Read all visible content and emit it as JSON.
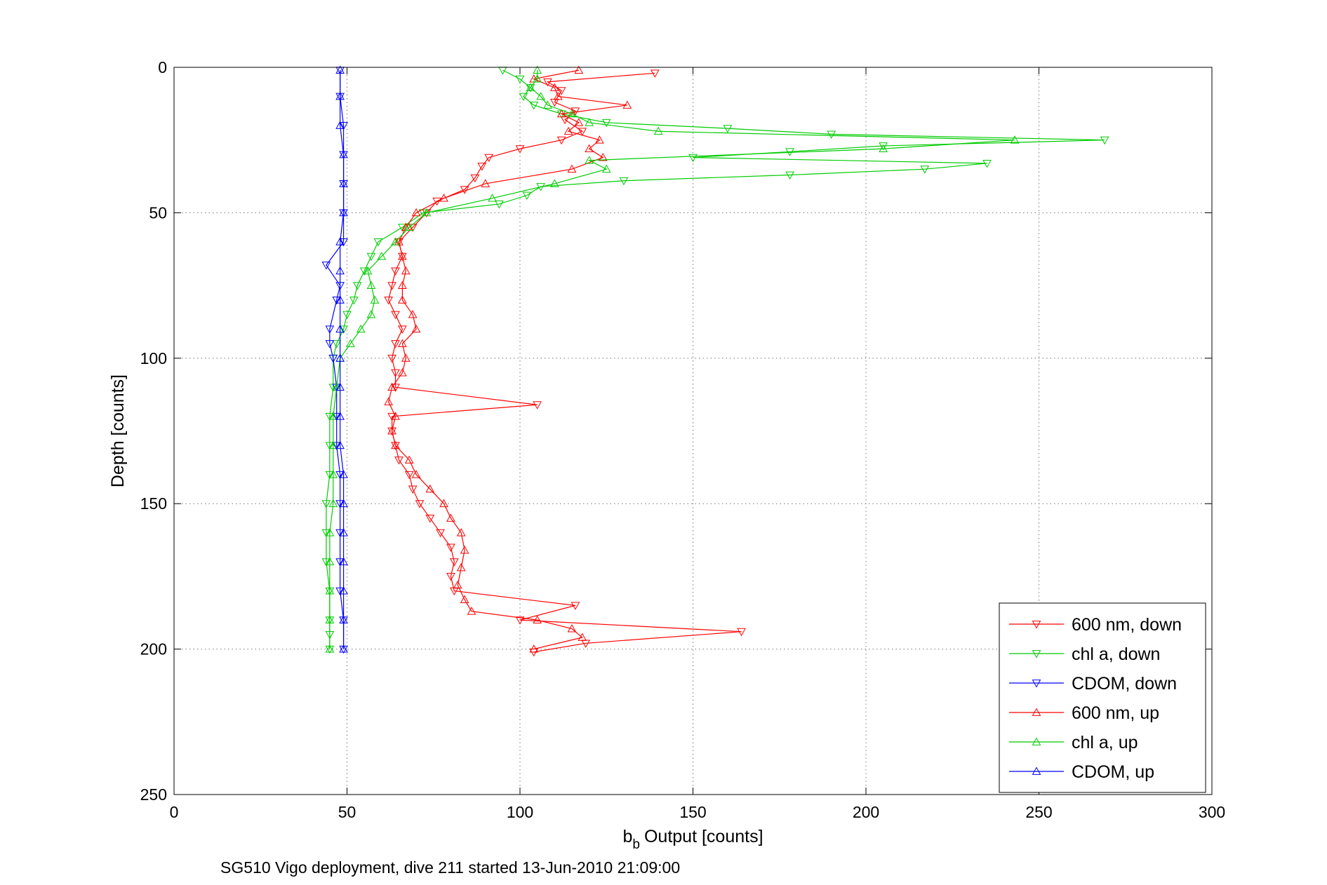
{
  "chart_data": {
    "type": "line",
    "title": "",
    "xlabel": "Output [counts]",
    "xlabel_symbol": "b",
    "xlabel_subscript": "b",
    "ylabel": "Depth [counts]",
    "xlim": [
      0,
      300
    ],
    "ylim": [
      0,
      250
    ],
    "y_reversed": true,
    "grid": true,
    "legend_position": "bottom-right",
    "xticks": [
      0,
      50,
      100,
      150,
      200,
      250,
      300
    ],
    "yticks": [
      0,
      50,
      100,
      150,
      200,
      250
    ],
    "caption": "SG510 Vigo deployment, dive 211 started 13-Jun-2010 21:09:00",
    "series": [
      {
        "name": "600 nm, down",
        "color": "#ff0000",
        "marker": "triangle-down",
        "depth": [
          2,
          5,
          8,
          12,
          15,
          18,
          22,
          25,
          28,
          31,
          34,
          38,
          42,
          46,
          50,
          55,
          60,
          65,
          70,
          75,
          80,
          85,
          90,
          95,
          100,
          105,
          110,
          116,
          120,
          125,
          130,
          135,
          140,
          145,
          150,
          155,
          160,
          165,
          170,
          175,
          180,
          185,
          190,
          194,
          198,
          201
        ],
        "values": [
          139,
          108,
          112,
          110,
          116,
          113,
          118,
          112,
          100,
          91,
          89,
          87,
          84,
          76,
          73,
          69,
          65,
          66,
          64,
          63,
          62,
          64,
          66,
          64,
          63,
          64,
          64,
          105,
          63,
          63,
          64,
          65,
          68,
          69,
          71,
          74,
          77,
          80,
          81,
          80,
          81,
          116,
          100,
          164,
          119,
          104
        ]
      },
      {
        "name": "chl a, down",
        "color": "#00cc00",
        "marker": "triangle-down",
        "depth": [
          1,
          4,
          7,
          10,
          13,
          16,
          19,
          21,
          23,
          25,
          27,
          29,
          31,
          33,
          35,
          37,
          39,
          41,
          44,
          47,
          50,
          55,
          60,
          65,
          70,
          75,
          80,
          85,
          90,
          95,
          100,
          110,
          120,
          130,
          140,
          150,
          160,
          170,
          180,
          190,
          195,
          200
        ],
        "values": [
          95,
          100,
          103,
          101,
          104,
          112,
          125,
          160,
          190,
          269,
          205,
          178,
          150,
          235,
          217,
          178,
          130,
          106,
          102,
          94,
          72,
          66,
          59,
          57,
          55,
          53,
          52,
          50,
          49,
          47,
          46,
          46,
          45,
          45,
          45,
          44,
          44,
          44,
          45,
          45,
          45,
          45
        ]
      },
      {
        "name": "CDOM, down",
        "color": "#0000ff",
        "marker": "triangle-down",
        "depth": [
          1,
          10,
          20,
          30,
          40,
          50,
          60,
          68,
          75,
          80,
          90,
          95,
          100,
          110,
          120,
          130,
          140,
          150,
          160,
          170,
          180,
          190,
          200
        ],
        "values": [
          48,
          48,
          49,
          49,
          49,
          49,
          49,
          44,
          48,
          47,
          45,
          45,
          46,
          47,
          47,
          47,
          48,
          48,
          48,
          48,
          48,
          49,
          49
        ]
      },
      {
        "name": "600 nm, up",
        "color": "#ff0000",
        "marker": "triangle-up",
        "depth": [
          200,
          196,
          193,
          190,
          187,
          183,
          178,
          172,
          166,
          160,
          155,
          150,
          145,
          140,
          135,
          130,
          125,
          120,
          115,
          110,
          105,
          100,
          95,
          90,
          85,
          80,
          75,
          70,
          65,
          60,
          55,
          50,
          45,
          40,
          35,
          31,
          28,
          25,
          22,
          19,
          16,
          13,
          10,
          7,
          4,
          1
        ],
        "values": [
          104,
          118,
          115,
          105,
          86,
          84,
          82,
          83,
          84,
          83,
          80,
          78,
          74,
          70,
          68,
          64,
          63,
          64,
          62,
          63,
          66,
          67,
          66,
          70,
          69,
          66,
          66,
          67,
          66,
          65,
          67,
          70,
          78,
          90,
          115,
          124,
          120,
          123,
          114,
          117,
          112,
          131,
          111,
          110,
          104,
          117
        ]
      },
      {
        "name": "chl a, up",
        "color": "#00cc00",
        "marker": "triangle-up",
        "depth": [
          200,
          190,
          180,
          170,
          160,
          150,
          140,
          130,
          120,
          110,
          100,
          95,
          90,
          85,
          80,
          75,
          70,
          65,
          60,
          55,
          50,
          45,
          40,
          35,
          32,
          28,
          25,
          22,
          19,
          16,
          13,
          10,
          7,
          4,
          1
        ],
        "values": [
          45,
          45,
          45,
          45,
          45,
          46,
          46,
          46,
          46,
          47,
          48,
          51,
          54,
          57,
          58,
          57,
          56,
          60,
          64,
          68,
          73,
          92,
          110,
          125,
          120,
          205,
          243,
          140,
          120,
          115,
          108,
          106,
          103,
          105,
          105
        ]
      },
      {
        "name": "CDOM, up",
        "color": "#0000ff",
        "marker": "triangle-up",
        "depth": [
          200,
          190,
          180,
          170,
          160,
          150,
          140,
          130,
          120,
          110,
          100,
          90,
          80,
          70,
          60,
          50,
          40,
          30,
          20,
          10,
          1
        ],
        "values": [
          49,
          49,
          49,
          49,
          49,
          49,
          49,
          48,
          48,
          48,
          48,
          48,
          48,
          48,
          48,
          49,
          49,
          49,
          48,
          48,
          48
        ]
      }
    ]
  }
}
